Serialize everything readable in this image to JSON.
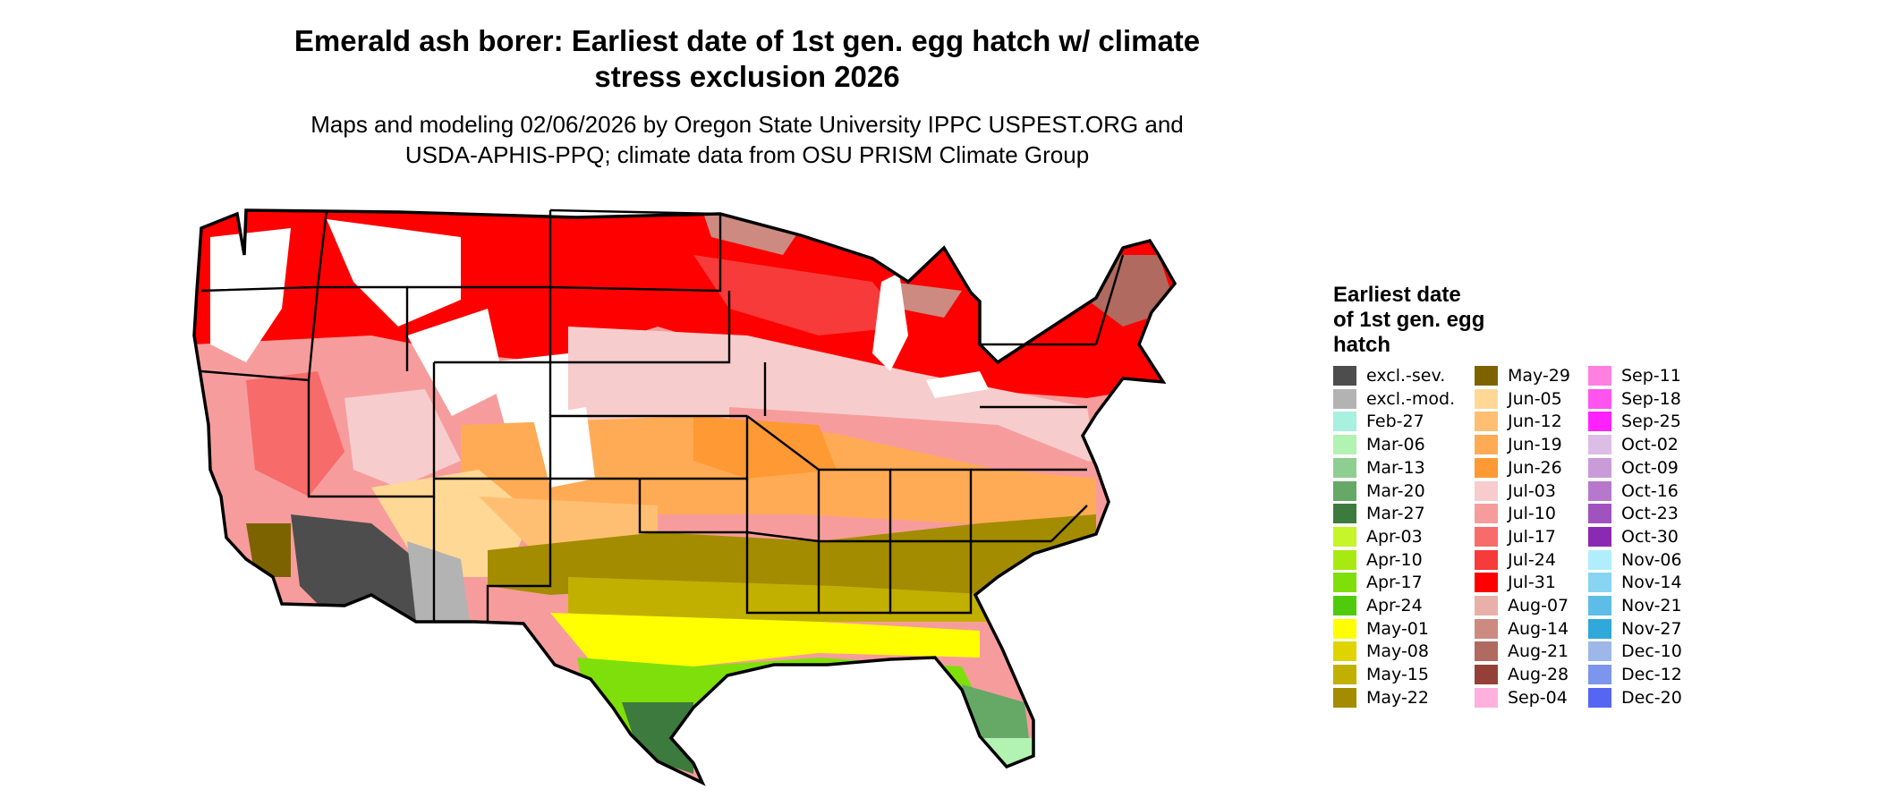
{
  "title_line1": "Emerald ash borer: Earliest date of 1st gen. egg hatch w/ climate",
  "title_line2": "stress exclusion 2026",
  "subtitle_line1": "Maps and modeling 02/06/2026 by Oregon State University IPPC USPEST.ORG and",
  "subtitle_line2": "USDA-APHIS-PPQ; climate data from OSU PRISM Climate Group",
  "legend": {
    "title": [
      "Earliest date",
      "of 1st gen. egg",
      "hatch"
    ],
    "items": [
      {
        "label": "excl.-sev.",
        "color": "#4d4d4d"
      },
      {
        "label": "excl.-mod.",
        "color": "#b3b3b3"
      },
      {
        "label": "Feb-27",
        "color": "#a8f0e0"
      },
      {
        "label": "Mar-06",
        "color": "#b2f2b2"
      },
      {
        "label": "Mar-13",
        "color": "#8fce91"
      },
      {
        "label": "Mar-20",
        "color": "#66a866"
      },
      {
        "label": "Mar-27",
        "color": "#3d7a3d"
      },
      {
        "label": "Apr-03",
        "color": "#c6f52a"
      },
      {
        "label": "Apr-10",
        "color": "#a6ea12"
      },
      {
        "label": "Apr-17",
        "color": "#7fdf0a"
      },
      {
        "label": "Apr-24",
        "color": "#4fcb0b"
      },
      {
        "label": "May-01",
        "color": "#ffff00"
      },
      {
        "label": "May-08",
        "color": "#e0d400"
      },
      {
        "label": "May-15",
        "color": "#c2b000"
      },
      {
        "label": "May-22",
        "color": "#a38c00"
      },
      {
        "label": "May-29",
        "color": "#7d6300"
      },
      {
        "label": "Jun-05",
        "color": "#ffd896"
      },
      {
        "label": "Jun-12",
        "color": "#ffbf73"
      },
      {
        "label": "Jun-19",
        "color": "#ffab55"
      },
      {
        "label": "Jun-26",
        "color": "#ff9933"
      },
      {
        "label": "Jul-03",
        "color": "#f7cccc"
      },
      {
        "label": "Jul-10",
        "color": "#f79c9c"
      },
      {
        "label": "Jul-17",
        "color": "#f76b6b"
      },
      {
        "label": "Jul-24",
        "color": "#f73a3a"
      },
      {
        "label": "Jul-31",
        "color": "#ff0000"
      },
      {
        "label": "Aug-07",
        "color": "#e8b0a8"
      },
      {
        "label": "Aug-14",
        "color": "#cc8a80"
      },
      {
        "label": "Aug-21",
        "color": "#b06a60"
      },
      {
        "label": "Aug-28",
        "color": "#944038"
      },
      {
        "label": "Sep-04",
        "color": "#ffb0dc"
      },
      {
        "label": "Sep-11",
        "color": "#ff80e0"
      },
      {
        "label": "Sep-18",
        "color": "#ff55ee"
      },
      {
        "label": "Sep-25",
        "color": "#ff22ff"
      },
      {
        "label": "Oct-02",
        "color": "#dcbde6"
      },
      {
        "label": "Oct-09",
        "color": "#c99bd9"
      },
      {
        "label": "Oct-16",
        "color": "#b678cc"
      },
      {
        "label": "Oct-23",
        "color": "#a052bf"
      },
      {
        "label": "Oct-30",
        "color": "#8a2ab2"
      },
      {
        "label": "Nov-06",
        "color": "#b0eeff"
      },
      {
        "label": "Nov-14",
        "color": "#88d4f2"
      },
      {
        "label": "Nov-21",
        "color": "#5ebde6"
      },
      {
        "label": "Nov-27",
        "color": "#30a8da"
      },
      {
        "label": "Dec-10",
        "color": "#9db8e8"
      },
      {
        "label": "Dec-12",
        "color": "#7b96ec"
      },
      {
        "label": "Dec-20",
        "color": "#5566f2"
      }
    ]
  }
}
